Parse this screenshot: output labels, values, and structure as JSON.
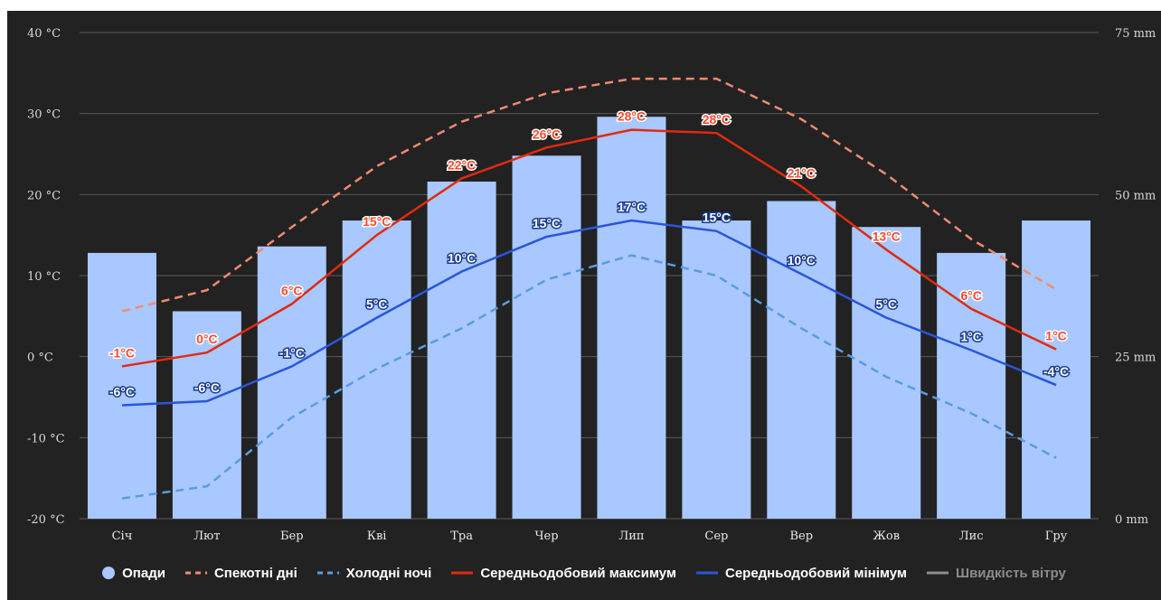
{
  "chart_data": {
    "type": "bar",
    "categories": [
      "Січ",
      "Лют",
      "Бер",
      "Кві",
      "Тра",
      "Чер",
      "Лип",
      "Сер",
      "Вер",
      "Жов",
      "Лис",
      "Гру"
    ],
    "y_left": {
      "ylim": [
        -20,
        40
      ],
      "ticks": [
        -20,
        -10,
        0,
        10,
        20,
        30,
        40
      ],
      "tick_labels": [
        "-20 °C",
        "-10 °C",
        "0 °C",
        "10 °C",
        "20 °C",
        "30 °C",
        "40 °C"
      ]
    },
    "y_right": {
      "ylim": [
        0,
        75
      ],
      "ticks": [
        0,
        25,
        50,
        75
      ],
      "tick_labels": [
        "0 mm",
        "25 mm",
        "50 mm",
        "75 mm"
      ]
    },
    "grid": true,
    "legend_position": "bottom",
    "series": [
      {
        "name": "Опади",
        "kind": "bar",
        "axis": "right",
        "color": "#a8c8ff",
        "values": [
          41,
          32,
          42,
          46,
          52,
          56,
          62,
          46,
          49,
          45,
          41,
          46
        ]
      },
      {
        "name": "Спекотні дні",
        "kind": "line",
        "style": "dashed",
        "axis": "left",
        "color": "#f08a70",
        "values": [
          5.6,
          8.2,
          16,
          23.5,
          29,
          32.5,
          34.3,
          34.3,
          29.3,
          22.5,
          14.5,
          8.3
        ]
      },
      {
        "name": "Холодні ночі",
        "kind": "line",
        "style": "dashed",
        "axis": "left",
        "color": "#5b9be0",
        "values": [
          -17.5,
          -16,
          -7.5,
          -1.5,
          3.5,
          9.5,
          12.5,
          10,
          3.5,
          -2.5,
          -7,
          -12.5
        ]
      },
      {
        "name": "Середньодобовий максимум",
        "kind": "line",
        "style": "solid",
        "axis": "left",
        "color": "#e02a10",
        "values": [
          -1.2,
          0.5,
          6.5,
          15,
          22,
          25.8,
          28,
          27.6,
          21,
          13.2,
          5.9,
          0.9
        ],
        "labels": [
          "-1°C",
          "0°C",
          "6°C",
          "15°C",
          "22°C",
          "26°C",
          "28°C",
          "28°C",
          "21°C",
          "13°C",
          "6°C",
          "1°C"
        ]
      },
      {
        "name": "Середньодобовий мінімум",
        "kind": "line",
        "style": "solid",
        "axis": "left",
        "color": "#2a55d8",
        "values": [
          -6,
          -5.5,
          -1.2,
          4.8,
          10.5,
          14.8,
          16.8,
          15.5,
          10.2,
          4.8,
          0.8,
          -3.5
        ],
        "labels": [
          "-6°C",
          "-6°C",
          "-1°C",
          "5°C",
          "10°C",
          "15°C",
          "17°C",
          "15°C",
          "10°C",
          "5°C",
          "1°C",
          "-4°C"
        ]
      }
    ]
  },
  "legend": [
    {
      "label": "Опади",
      "symbol": "dot",
      "color": "#a8c8ff"
    },
    {
      "label": "Спекотні дні",
      "symbol": "dashed",
      "color": "#f08a70"
    },
    {
      "label": "Холодні ночі",
      "symbol": "dashed",
      "color": "#5b9be0"
    },
    {
      "label": "Середньодобовий максимум",
      "symbol": "solid",
      "color": "#e02a10"
    },
    {
      "label": "Середньодобовий мінімум",
      "symbol": "solid",
      "color": "#2a55d8"
    },
    {
      "label": "Швидкість вітру",
      "symbol": "solid",
      "color": "#8c8c8c",
      "muted": true
    }
  ]
}
